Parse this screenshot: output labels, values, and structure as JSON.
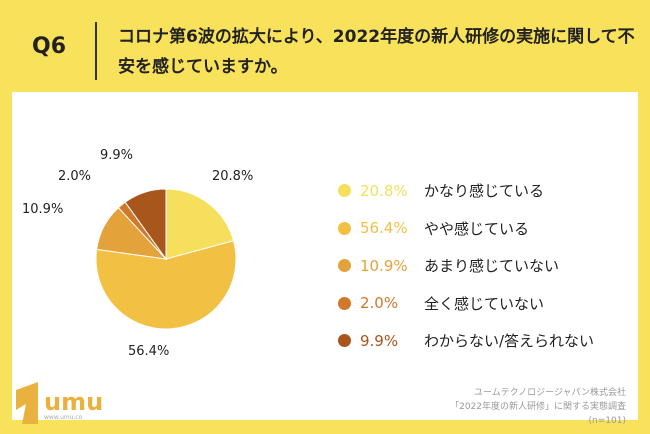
{
  "header": {
    "question": "Q6",
    "title": "コロナ第6波の拡大により、2022年度の新人研修の実施に関して不安を感じていますか。"
  },
  "chart_data": {
    "type": "pie",
    "categories": [
      "かなり感じている",
      "やや感じている",
      "あまり感じていない",
      "全く感じていない",
      "わからない/答えられない"
    ],
    "values": [
      20.8,
      56.4,
      10.9,
      2.0,
      9.9
    ],
    "value_labels": [
      "20.8%",
      "56.4%",
      "10.9%",
      "2.0%",
      "9.9%"
    ],
    "colors": [
      "#f6df5c",
      "#f2c043",
      "#e3a23a",
      "#d0792b",
      "#a8561c"
    ],
    "legend_placement": "right"
  },
  "footer": {
    "company": "ユームテクノロジージャパン株式会社",
    "survey": "「2022年度の新人研修」に関する実態調査",
    "n": "(n=101)",
    "logo_text": "umu",
    "logo_url": "www.umu.co"
  }
}
